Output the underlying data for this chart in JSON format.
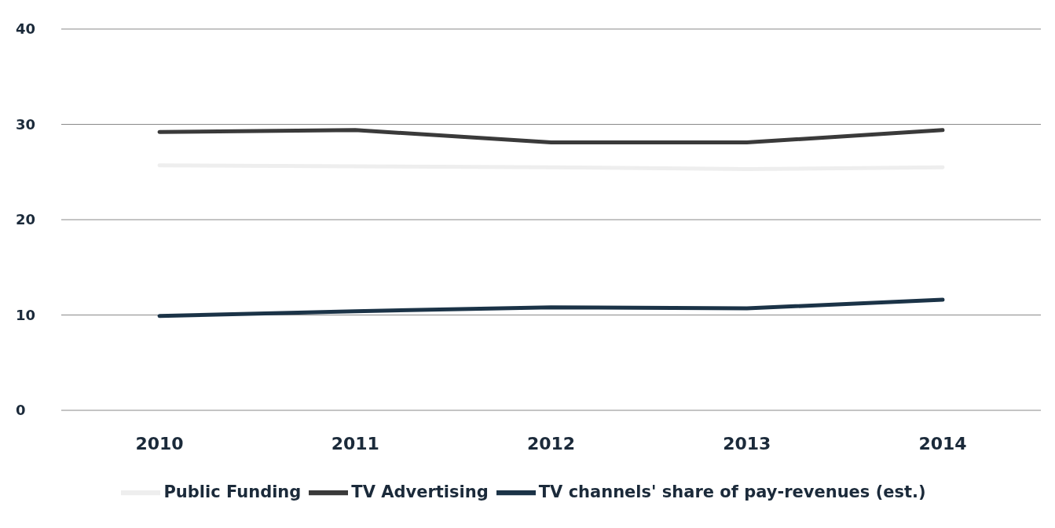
{
  "chart_data": {
    "type": "line",
    "categories": [
      "2010",
      "2011",
      "2012",
      "2013",
      "2014"
    ],
    "series": [
      {
        "name": "Public Funding",
        "color": "#eeeeee",
        "values": [
          25.7,
          25.6,
          25.5,
          25.3,
          25.5
        ]
      },
      {
        "name": "TV Advertising",
        "color": "#3a3a3a",
        "values": [
          29.2,
          29.4,
          28.1,
          28.1,
          29.4
        ]
      },
      {
        "name": "TV channels' share of pay-revenues (est.)",
        "color": "#1b3347",
        "values": [
          9.9,
          10.4,
          10.8,
          10.7,
          11.6
        ]
      }
    ],
    "ylim": [
      0,
      40
    ],
    "yticks": [
      0,
      10,
      20,
      30,
      40
    ],
    "grid": "y",
    "legend": "bottom",
    "marker": "none",
    "line_style": "solid"
  }
}
